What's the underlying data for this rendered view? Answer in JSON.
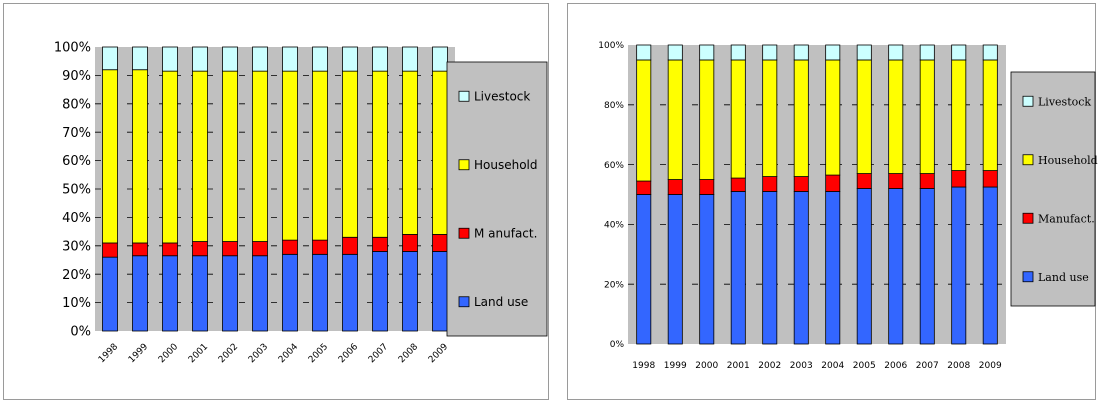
{
  "colors": {
    "land_use": "#3366ff",
    "manufact": "#ff0000",
    "household": "#ffff00",
    "livestock": "#ccffff",
    "plot_bg": "#c0c0c0",
    "legend_bg": "#c0c0c0"
  },
  "chart_data": [
    {
      "type": "bar",
      "stacked": true,
      "percent": true,
      "categories": [
        "1998",
        "1999",
        "2000",
        "2001",
        "2002",
        "2003",
        "2004",
        "2005",
        "2006",
        "2007",
        "2008",
        "2009"
      ],
      "series": [
        {
          "name": "Land use",
          "values": [
            26,
            26.5,
            26.5,
            26.5,
            26.5,
            26.5,
            27,
            27,
            27,
            28,
            28,
            28
          ]
        },
        {
          "name": "Manufact.",
          "values": [
            5,
            4.5,
            4.5,
            5,
            5,
            5,
            5,
            5,
            6,
            5,
            6,
            6
          ]
        },
        {
          "name": "Household",
          "values": [
            61,
            61,
            60.5,
            60,
            60,
            60,
            59.5,
            59.5,
            58.5,
            58.5,
            57.5,
            57.5
          ]
        },
        {
          "name": "Livestock",
          "values": [
            8,
            8,
            8.5,
            8.5,
            8.5,
            8.5,
            8.5,
            8.5,
            8.5,
            8.5,
            8.5,
            8.5
          ]
        }
      ],
      "ylim": [
        0,
        100
      ],
      "yticks": [
        "0%",
        "10%",
        "20%",
        "30%",
        "40%",
        "50%",
        "60%",
        "70%",
        "80%",
        "90%",
        "100%"
      ],
      "legend_order": [
        "Livestock",
        "Household",
        "Manufact.",
        "Land use"
      ],
      "legend_labels": [
        "Livestock",
        "Household",
        "M anufact.",
        "Land use"
      ],
      "grid": true,
      "xlabels_rotated": true
    },
    {
      "type": "bar",
      "stacked": true,
      "percent": true,
      "categories": [
        "1998",
        "1999",
        "2000",
        "2001",
        "2002",
        "2003",
        "2004",
        "2005",
        "2006",
        "2007",
        "2008",
        "2009"
      ],
      "series": [
        {
          "name": "Land use",
          "values": [
            50,
            50,
            50,
            51,
            51,
            51,
            51,
            52,
            52,
            52,
            52.5,
            52.5
          ]
        },
        {
          "name": "Manufact.",
          "values": [
            4.5,
            5,
            5,
            4.5,
            5,
            5,
            5.5,
            5,
            5,
            5,
            5.5,
            5.5
          ]
        },
        {
          "name": "Household",
          "values": [
            40.5,
            40,
            40,
            39.5,
            39,
            39,
            38.5,
            38,
            38,
            38,
            37,
            37
          ]
        },
        {
          "name": "Livestock",
          "values": [
            5,
            5,
            5,
            5,
            5,
            5,
            5,
            5,
            5,
            5,
            5,
            5
          ]
        }
      ],
      "ylim": [
        0,
        100
      ],
      "yticks": [
        "0%",
        "20%",
        "40%",
        "60%",
        "80%",
        "100%"
      ],
      "legend_order": [
        "Livestock",
        "Household",
        "Manufact.",
        "Land use"
      ],
      "legend_labels": [
        "Livestock",
        "Household",
        "Manufact.",
        "Land use"
      ],
      "grid": true,
      "xlabels_rotated": false
    }
  ]
}
